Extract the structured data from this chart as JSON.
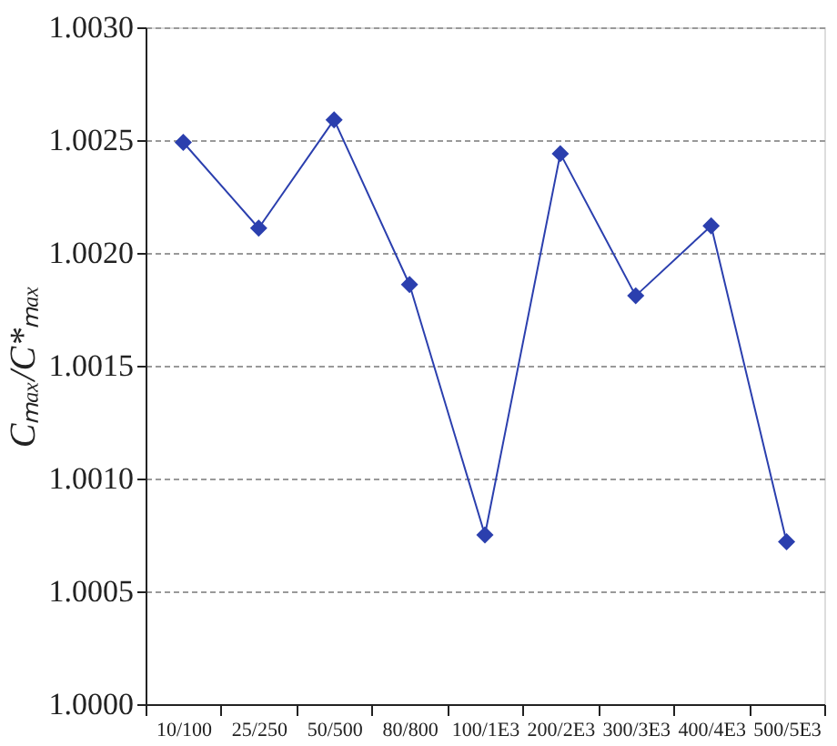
{
  "chart_data": {
    "type": "line",
    "ylabel": "Cₘₐₓ/C*ₘₐₓ",
    "categories": [
      "10/100",
      "25/250",
      "50/500",
      "80/800",
      "100/1E3",
      "200/2E3",
      "300/3E3",
      "400/4E3",
      "500/5E3"
    ],
    "series": [
      {
        "color": "#2b3fae",
        "values": [
          1.00249,
          1.00211,
          1.00259,
          1.00186,
          1.00075,
          1.00244,
          1.00181,
          1.00212,
          1.00072
        ]
      }
    ],
    "ylim": [
      1.0,
      1.003
    ],
    "yticks": [
      {
        "value": 1.0,
        "label": "1.0000"
      },
      {
        "value": 1.0005,
        "label": "1.0005"
      },
      {
        "value": 1.001,
        "label": "1.0010"
      },
      {
        "value": 1.0015,
        "label": "1.0015"
      },
      {
        "value": 1.002,
        "label": "1.0020"
      },
      {
        "value": 1.0025,
        "label": "1.0025"
      },
      {
        "value": 1.003,
        "label": "1.0030"
      }
    ],
    "grid": "y",
    "marker": "diamond",
    "line_style": "solid",
    "legend": false
  }
}
